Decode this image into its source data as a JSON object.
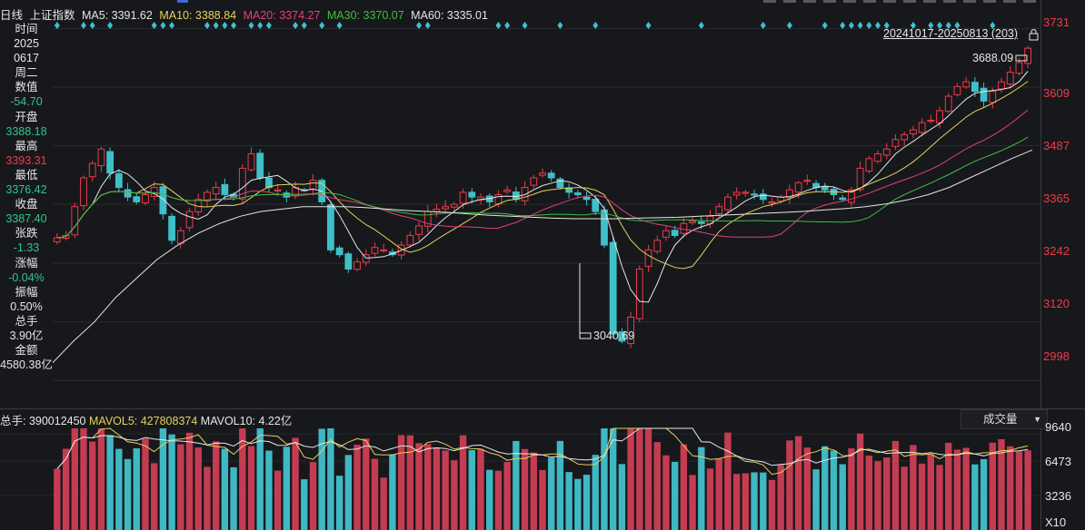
{
  "header": {
    "period": "日线",
    "index_name": "上证指数",
    "ma5": "MA5: 3391.62",
    "ma10": "MA10: 3388.84",
    "ma20": "MA20: 3374.27",
    "ma30": "MA30: 3370.07",
    "ma60": "MA60: 3335.01"
  },
  "side_panel": {
    "time_label": "时间",
    "year": "2025",
    "date": "0617",
    "weekday": "周二",
    "value_label": "数值",
    "value": "-54.70",
    "open_label": "开盘",
    "open": "3388.18",
    "high_label": "最高",
    "high": "3393.31",
    "low_label": "最低",
    "low": "3376.42",
    "close_label": "收盘",
    "close": "3387.40",
    "change_label": "张跌",
    "change": "-1.33",
    "pct_label": "涨幅",
    "pct": "-0.04%",
    "amp_label": "振幅",
    "amp": "0.50%",
    "hands_label": "总手",
    "hands": "3.90亿",
    "amount_label": "金额",
    "amount": "4580.38亿"
  },
  "range_label": "20241017-20250813 (203)",
  "annotations": {
    "high_mark": "3688.09",
    "low_mark": "3040.69"
  },
  "price_axis": [
    "3731",
    "3609",
    "3487",
    "3365",
    "3242",
    "3120",
    "2998"
  ],
  "volume_header": {
    "total": "总手: 390012450",
    "mavol5": "MAVOL5: 427808374",
    "mavol10": "MAVOL10: 4.22亿"
  },
  "volume_selector": "成交量",
  "volume_axis": [
    "9640",
    "6473",
    "3236",
    "X10"
  ],
  "colors": {
    "up": "#ef3a4a",
    "down": "#3fc0c8",
    "ma5": "#e6e6e6",
    "ma10": "#e6d15a",
    "ma20": "#e0407a",
    "ma30": "#3fbf3f",
    "ma60": "#e6e6e6",
    "background": "#17181c"
  },
  "chart_data": {
    "type": "candlestick",
    "ylim": [
      2940,
      3745
    ],
    "closes": [
      3295,
      3300,
      3360,
      3420,
      3450,
      3480,
      3430,
      3400,
      3380,
      3370,
      3385,
      3400,
      3345,
      3290,
      3310,
      3350,
      3375,
      3390,
      3400,
      3385,
      3380,
      3440,
      3470,
      3420,
      3400,
      3395,
      3380,
      3400,
      3395,
      3415,
      3370,
      3270,
      3260,
      3230,
      3245,
      3260,
      3275,
      3270,
      3260,
      3280,
      3300,
      3320,
      3350,
      3355,
      3360,
      3365,
      3390,
      3380,
      3380,
      3370,
      3385,
      3395,
      3375,
      3400,
      3420,
      3430,
      3420,
      3400,
      3390,
      3385,
      3375,
      3350,
      3280,
      3095,
      3080,
      3130,
      3230,
      3270,
      3290,
      3310,
      3300,
      3325,
      3330,
      3325,
      3340,
      3360,
      3380,
      3390,
      3390,
      3385,
      3375,
      3370,
      3380,
      3395,
      3410,
      3415,
      3400,
      3395,
      3385,
      3375,
      3395,
      3440,
      3460,
      3470,
      3480,
      3500,
      3510,
      3520,
      3535,
      3540,
      3560,
      3590,
      3610,
      3620,
      3600,
      3580,
      3600,
      3620,
      3640,
      3660,
      3690
    ],
    "ma60": [
      3035,
      3080,
      3120,
      3170,
      3210,
      3250,
      3280,
      3305,
      3325,
      3340,
      3350,
      3355,
      3360,
      3360,
      3360,
      3358,
      3355,
      3352,
      3350,
      3348,
      3345,
      3342,
      3340,
      3338,
      3336,
      3335,
      3335,
      3335,
      3336,
      3337,
      3338,
      3340,
      3342,
      3344,
      3346,
      3348,
      3350,
      3353,
      3356,
      3360,
      3366,
      3374,
      3385,
      3400,
      3420,
      3440,
      3460,
      3478
    ],
    "low_mark_value": 3040.69,
    "high_mark_value": 3688.09
  }
}
